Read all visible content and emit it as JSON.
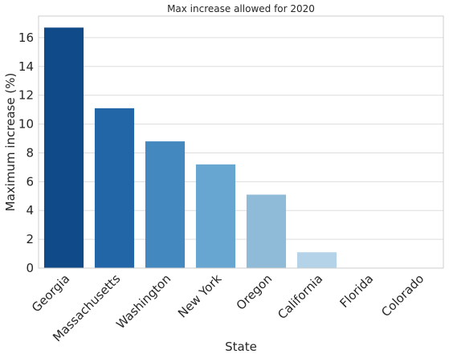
{
  "chart_data": {
    "type": "bar",
    "title": "Max increase allowed for 2020",
    "xlabel": "State",
    "ylabel": "Maximum increase (%)",
    "categories": [
      "Georgia",
      "Massachusetts",
      "Washington",
      "New York",
      "Oregon",
      "California",
      "Florida",
      "Colorado"
    ],
    "values": [
      16.7,
      11.1,
      8.8,
      7.2,
      5.1,
      1.1,
      0,
      0
    ],
    "colors": [
      "#114a89",
      "#2366a8",
      "#4389bf",
      "#66a6d0",
      "#8fbbd9",
      "#b4d3e8",
      "#d3e4f3",
      "#e8f1fa"
    ],
    "ylim": [
      0,
      17.5
    ],
    "yticks": [
      0,
      2,
      4,
      6,
      8,
      10,
      12,
      14,
      16
    ],
    "grid": true,
    "grid_axis": "y"
  }
}
